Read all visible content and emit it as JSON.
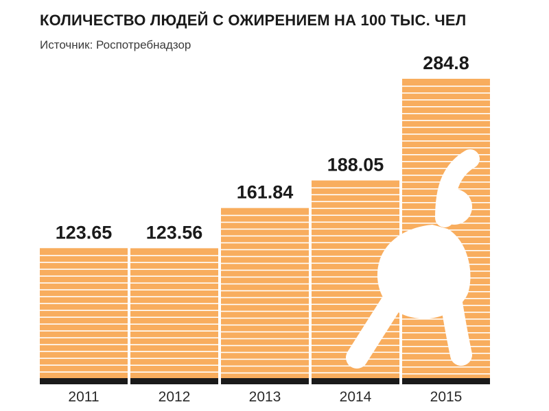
{
  "title": "КОЛИЧЕСТВО ЛЮДЕЙ С ОЖИРЕНИЕМ НА 100 ТЫС. ЧЕЛ",
  "subtitle": "Источник: Роспотребнадзор",
  "colors": {
    "bar": "#f8ad5e",
    "stripe": "#ffffff",
    "baseline": "#1a1a1a",
    "text": "#1a1a1a"
  },
  "chart_data": {
    "type": "bar",
    "title": "КОЛИЧЕСТВО ЛЮДЕЙ С ОЖИРЕНИЕМ НА 100 ТЫС. ЧЕЛ",
    "subtitle": "Источник: Роспотребнадзор",
    "categories": [
      "2011",
      "2012",
      "2013",
      "2014",
      "2015"
    ],
    "values": [
      123.65,
      123.56,
      161.84,
      188.05,
      284.8
    ],
    "value_labels": [
      "123.65",
      "123.56",
      "161.84",
      "188.05",
      "284.8"
    ],
    "xlabel": "",
    "ylabel": "",
    "grid": false,
    "legend": "none",
    "decoration": "stretching-person-silhouette"
  }
}
